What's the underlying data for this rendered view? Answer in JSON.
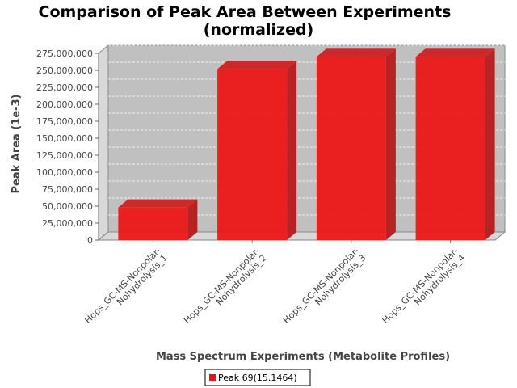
{
  "chart_data": {
    "type": "bar",
    "title_line1": "Comparison of Peak Area Between Experiments",
    "title_line2": "(normalized)",
    "xlabel": "Mass Spectrum Experiments (Metabolite Profiles)",
    "ylabel": "Peak Area (1e-3)",
    "ylim": [
      0,
      275000000
    ],
    "y_ticks": [
      0,
      25000000,
      50000000,
      75000000,
      100000000,
      125000000,
      150000000,
      175000000,
      200000000,
      225000000,
      250000000,
      275000000
    ],
    "y_tick_labels": [
      "0",
      "25,000,000",
      "50,000,000",
      "75,000,000",
      "100,000,000",
      "125,000,000",
      "150,000,000",
      "175,000,000",
      "200,000,000",
      "225,000,000",
      "250,000,000",
      "275,000,000"
    ],
    "categories": [
      [
        "Hops_GC-MS-Nonpolar-",
        "Nohydrolysis_1"
      ],
      [
        "Hops_GC-MS-Nonpolar-",
        "Nohydrolysis_2"
      ],
      [
        "Hops_GC-MS-Nonpolar-",
        "Nohydrolysis_3"
      ],
      [
        "Hops_GC-MS-Nonpolar-",
        "Nohydrolysis_4"
      ]
    ],
    "series": [
      {
        "name": "Peak 69(15.1464)",
        "color": "#ee1111",
        "values": [
          48000000,
          252000000,
          270000000,
          270000000
        ]
      }
    ],
    "grid": true,
    "legend_position": "bottom",
    "plot_background": "#c0c0c0"
  }
}
